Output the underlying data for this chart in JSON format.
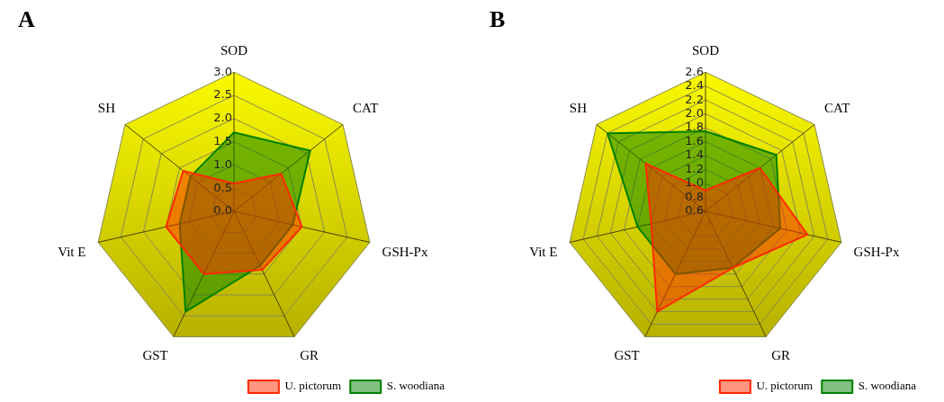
{
  "chart_data": [
    {
      "type": "radar",
      "title": "A",
      "categories": [
        "SOD",
        "CAT",
        "GSH-Px",
        "GR",
        "GST",
        "Vit E",
        "SH"
      ],
      "ylim": [
        0,
        3
      ],
      "yticks": [
        {
          "value": 0,
          "label": "0.0"
        },
        0.5,
        {
          "value": 1,
          "label": "1.0"
        },
        1.5,
        {
          "value": 2,
          "label": "2.0"
        },
        2.5,
        {
          "value": 3,
          "label": "3.0"
        }
      ],
      "grid": true,
      "legend": "bottom right",
      "marker": "none",
      "series": [
        {
          "name": "U. pictorum",
          "color": "#ff2a00",
          "values": [
            0.6,
            1.3,
            1.5,
            1.4,
            1.5,
            1.5,
            1.4
          ]
        },
        {
          "name": "S. woodiana",
          "color": "#008000",
          "values": [
            1.7,
            2.1,
            1.3,
            1.3,
            2.4,
            1.2,
            1.2
          ]
        }
      ]
    },
    {
      "type": "radar",
      "title": "B",
      "categories": [
        "SOD",
        "CAT",
        "GSH-Px",
        "GR",
        "GST",
        "Vit E",
        "SH"
      ],
      "ylim": [
        0.6,
        2.6
      ],
      "yticks": [
        0.6,
        0.8,
        {
          "value": 1,
          "label": "1.0"
        },
        1.2,
        1.4,
        1.6,
        1.8,
        {
          "value": 2,
          "label": "2.0"
        },
        2.2,
        2.4,
        2.6
      ],
      "grid": true,
      "legend": "bottom right",
      "marker": "none",
      "series": [
        {
          "name": "U. pictorum",
          "color": "#ff2a00",
          "values": [
            0.9,
            1.6,
            2.1,
            1.5,
            2.2,
            1.4,
            1.7
          ]
        },
        {
          "name": "S. woodiana",
          "color": "#008000",
          "values": [
            1.75,
            1.9,
            1.7,
            1.5,
            1.6,
            1.6,
            2.4
          ]
        }
      ]
    }
  ]
}
